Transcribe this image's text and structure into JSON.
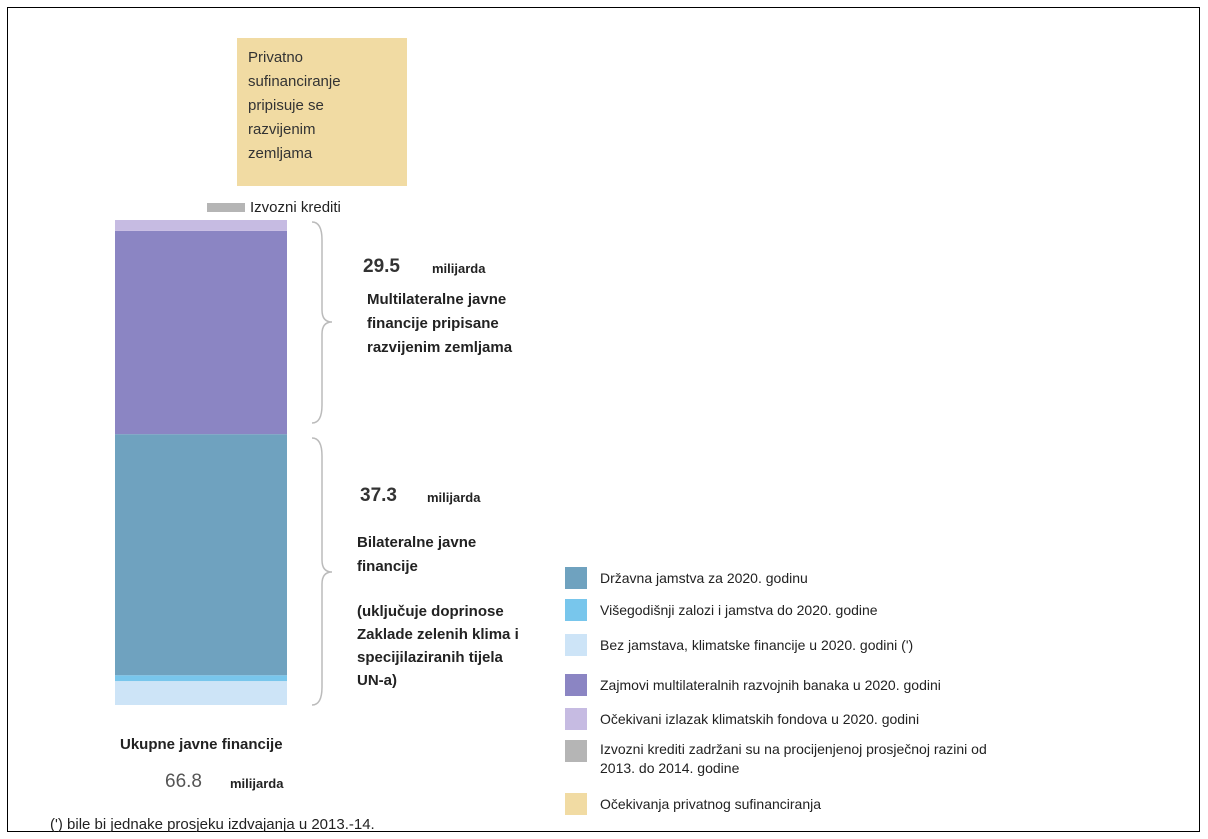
{
  "chart_data": {
    "type": "stacked_bar",
    "box_lines": [
      "Privatno",
      "sufinanciranje",
      "pripisuje se",
      "razvijenim",
      "zemljama"
    ],
    "export_label": "Izvozni krediti",
    "groups": [
      {
        "value": 29.5,
        "unit": "milijarda",
        "lines": [
          "Multilateralne javne",
          "financije pripisane",
          "razvijenim zemljama"
        ]
      },
      {
        "value": 37.3,
        "unit": "milijarda",
        "lines": [
          "Bilateralne javne",
          "financije"
        ],
        "note_lines": [
          "(uključuje doprinose",
          "Zaklade zelenih klima i",
          "specijilaziranih tijela",
          "UN-a)"
        ]
      }
    ],
    "total": {
      "label": "Ukupne javne financije",
      "value": 66.8,
      "unit": "milijarda"
    },
    "footnote": "(') bile bi jednake prosjeku izdvajanja u 2013.-14.",
    "series": [
      {
        "name": "Državna jamstva za 2020. godinu",
        "color": "#6fa2bf",
        "values": [
          33.2
        ]
      },
      {
        "name": "Višegodišnji zalozi i jamstva do 2020. godine",
        "color": "#78c6ec",
        "values": [
          0.8
        ]
      },
      {
        "name": "Bez jamstava, klimatske financije u 2020. godini (')",
        "color": "#cde4f7",
        "values": [
          3.3
        ]
      },
      {
        "name": "Zajmovi multilateralnih razvojnih banaka u 2020. godini",
        "color": "#8b85c3",
        "values": [
          28.0
        ]
      },
      {
        "name": "Očekivani izlazak klimatskih fondova u 2020. godini",
        "color": "#c6bbe2",
        "values": [
          1.5
        ]
      },
      {
        "name": "Izvozni krediti zadržani su na procijenjenoj prosječnoj razini od 2013. do 2014. godine",
        "color": "#b5b5b5"
      },
      {
        "name": "Očekivanja privatnog sufinanciranja",
        "color": "#f1dba3"
      }
    ]
  }
}
